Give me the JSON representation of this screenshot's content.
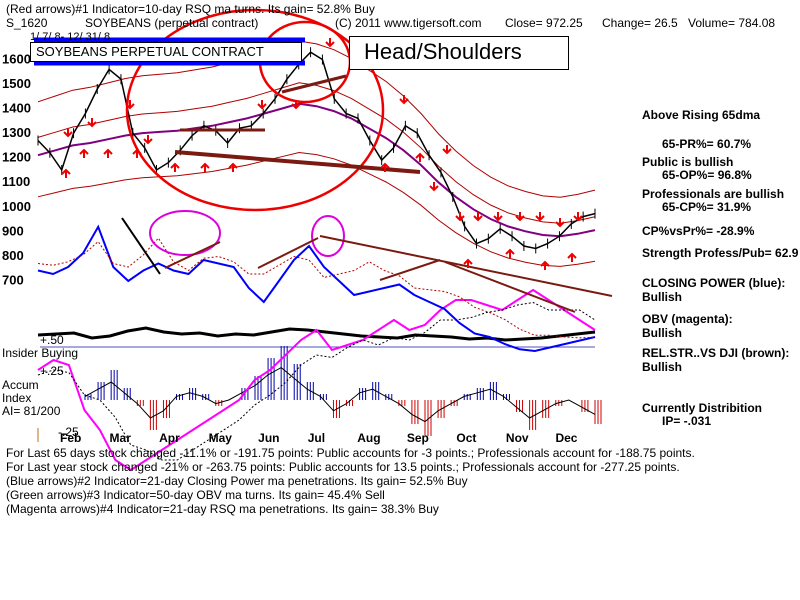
{
  "header": {
    "line1": "(Red arrows)#1 Indicator=10-day RSQ ma turns. Its gain= 52.8% Buy",
    "symbol": "S_1620",
    "name": "SOYBEANS (perpetual contract)",
    "copyright": "(C) 2011 www.tigersoft.com",
    "close": "Close= 972.25",
    "change": "Change= 26.5",
    "volume": "Volume= 784.08",
    "daterange": "1/ 7/ 8- 12/ 31/ 8"
  },
  "annotations": {
    "contract_box": "SOYBEANS PERPETUAL CONTRACT",
    "pattern_box": "Head/Shoulders"
  },
  "right_panel": {
    "above_ma": "Above Rising 65dma",
    "pr": "65-PR%= 60.7%",
    "public": "Public is bullish",
    "op": "65-OP%= 96.8%",
    "professionals": "Professionals are bullish",
    "cp": "65-CP%= 31.9%",
    "cpvspr": "CP%vsPr%= -28.9%",
    "strength": "Strength Profess/Pub= 62.9",
    "closing_power_label": "CLOSING POWER (blue):",
    "closing_power_value": "Bullish",
    "obv_label": "OBV (magenta):",
    "obv_value": "Bullish",
    "relstr_label": "REL.STR..VS DJI (brown):",
    "relstr_value": "Bullish",
    "distribution": "Currently Distribition",
    "ip": "IP= -.031"
  },
  "lower_labels": {
    "plus50": "+.50",
    "insider": "Insider Buying",
    "plus25": "+.25",
    "accum1": "Accum",
    "accum2": "Index",
    "ai": "AI= 81/200",
    "minus25": "-.25"
  },
  "footer": {
    "line1": "For Last 65 days stock changed -11.1% or -191.75 points:  Public accounts for -3 points.;  Professionals account for -188.75 points.",
    "line2": "For Last year stock changed -21% or -263.75 points:  Public accounts for  13.5 points.;  Professionals account for -277.25 points.",
    "line3": "(Blue arrows)#2 Indicator=21-day Closing Power ma penetrations. Its gain= 52.5% Buy",
    "line4": "(Green arrows)#3 Indicator=50-day OBV ma turns. Its gain= 45.4% Sell",
    "line5": "(Magenta arrows)#4 Indicator=21-day RSQ ma penetrations. Its gain= 38.3% Buy"
  },
  "colors": {
    "price": "#000000",
    "bands": "#b00000",
    "ma65": "#800080",
    "closing_power": "#0000ff",
    "obv": "#ff00ff",
    "relstr": "#7a1a10",
    "accum_pos": "#0000aa",
    "accum_neg": "#cc0000",
    "buy_arrow": "#ee0000",
    "annotation_red": "#ee0000",
    "annotation_blue": "#0000ff",
    "trendline": "#7a1a10",
    "highlight": "#dd00dd"
  },
  "chart_data": {
    "type": "line",
    "months": [
      "Feb",
      "Mar",
      "Apr",
      "May",
      "Jun",
      "Jul",
      "Aug",
      "Sep",
      "Oct",
      "Nov",
      "Dec"
    ],
    "ylabels": [
      1600,
      1500,
      1400,
      1300,
      1200,
      1100,
      1000,
      900,
      800,
      700
    ],
    "ylim": [
      620,
      1700
    ],
    "price": [
      1270,
      1220,
      1150,
      1300,
      1380,
      1480,
      1560,
      1520,
      1300,
      1240,
      1150,
      1180,
      1230,
      1290,
      1330,
      1310,
      1260,
      1320,
      1330,
      1380,
      1440,
      1520,
      1580,
      1630,
      1600,
      1440,
      1380,
      1360,
      1270,
      1190,
      1240,
      1330,
      1300,
      1210,
      1140,
      1040,
      920,
      850,
      870,
      910,
      880,
      840,
      830,
      850,
      880,
      930,
      960,
      972.25
    ],
    "ma65": [
      1210,
      1230,
      1250,
      1260,
      1275,
      1290,
      1300,
      1305,
      1310,
      1320,
      1330,
      1345,
      1360,
      1380,
      1400,
      1420,
      1410,
      1390,
      1360,
      1320,
      1280,
      1230,
      1170,
      1100,
      1040,
      990,
      950,
      920,
      900,
      885,
      880,
      890,
      905
    ],
    "closing_power": [
      850,
      840,
      860,
      900,
      975,
      860,
      820,
      850,
      870,
      850,
      840,
      880,
      870,
      860,
      800,
      760,
      820,
      880,
      920,
      860,
      820,
      780,
      790,
      800,
      810,
      780,
      760,
      740,
      700,
      670,
      660,
      640,
      625,
      620,
      630,
      640,
      650,
      660
    ],
    "obv": [
      370,
      360,
      365,
      410,
      430,
      460,
      470,
      460,
      450,
      440,
      430,
      420,
      410,
      400,
      380,
      370,
      355,
      340,
      330,
      350,
      345,
      340,
      330,
      320,
      330,
      325,
      310,
      300,
      300,
      305,
      310,
      300,
      290,
      300,
      310,
      320,
      330
    ],
    "relstr": [
      15,
      16,
      17,
      12,
      14,
      19,
      22,
      18,
      16,
      17,
      14,
      16,
      15,
      18,
      21,
      20,
      18,
      16,
      14,
      13,
      12,
      15,
      14,
      13,
      11,
      12,
      10,
      11,
      12,
      14,
      16,
      18
    ],
    "accum": [
      0.05,
      0.15,
      0.25,
      0.1,
      -0.05,
      -0.25,
      -0.15,
      0.05,
      0.1,
      0.05,
      -0.05,
      0.0,
      0.1,
      0.2,
      0.35,
      0.45,
      0.3,
      0.15,
      0.05,
      -0.15,
      -0.05,
      0.1,
      0.15,
      0.05,
      -0.05,
      -0.2,
      -0.3,
      -0.15,
      -0.05,
      0.05,
      0.1,
      0.15,
      0.05,
      -0.1,
      -0.25,
      -0.15,
      -0.05,
      0.0,
      -0.1,
      -0.2
    ]
  }
}
